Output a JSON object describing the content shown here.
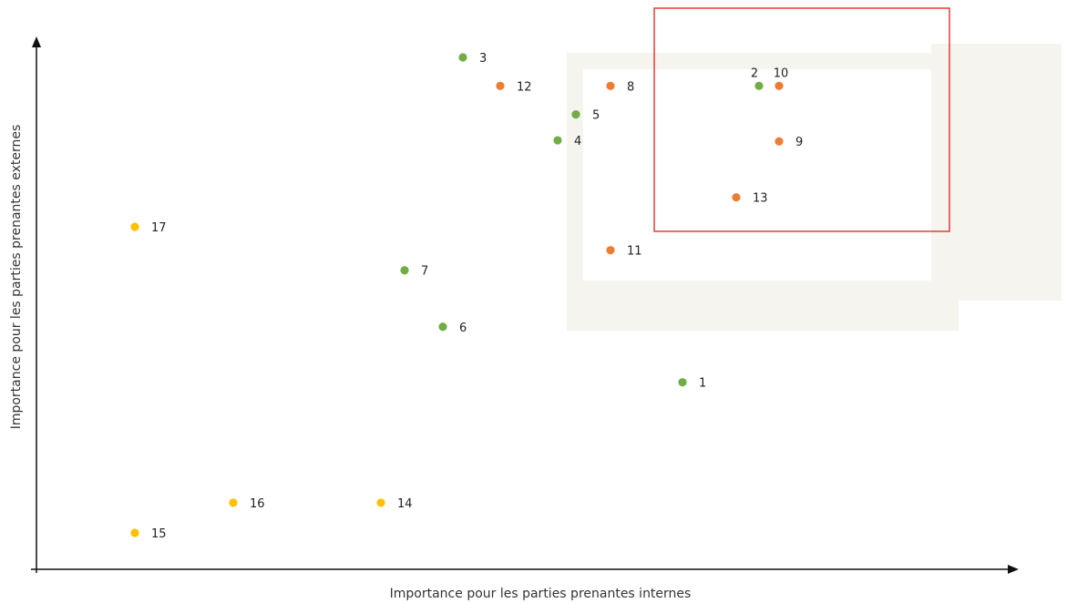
{
  "chart_data": {
    "type": "scatter",
    "xlabel": "Importance pour les parties prenantes internes",
    "ylabel": "Importance pour les parties prenantes externes",
    "xlim": [
      0,
      100
    ],
    "ylim": [
      0,
      100
    ],
    "grid": false,
    "colors": {
      "green": "#70ad47",
      "orange": "#ed7d31",
      "yellow": "#ffc000",
      "highlight": "#e83a3a",
      "axis": "#111111",
      "shade": "#f5f4ef"
    },
    "points": [
      {
        "label": "1",
        "x": 70.9,
        "y": 35.4,
        "color": "green"
      },
      {
        "label": "2",
        "x": 79.3,
        "y": 91.5,
        "color": "green"
      },
      {
        "label": "3",
        "x": 46.8,
        "y": 96.9,
        "color": "green"
      },
      {
        "label": "4",
        "x": 57.2,
        "y": 81.2,
        "color": "green"
      },
      {
        "label": "5",
        "x": 59.2,
        "y": 86.1,
        "color": "green"
      },
      {
        "label": "6",
        "x": 44.6,
        "y": 45.9,
        "color": "green"
      },
      {
        "label": "7",
        "x": 40.4,
        "y": 56.6,
        "color": "green"
      },
      {
        "label": "8",
        "x": 63.0,
        "y": 91.5,
        "color": "orange"
      },
      {
        "label": "9",
        "x": 81.5,
        "y": 81.0,
        "color": "orange"
      },
      {
        "label": "10",
        "x": 81.5,
        "y": 91.5,
        "color": "orange"
      },
      {
        "label": "11",
        "x": 63.0,
        "y": 60.4,
        "color": "orange"
      },
      {
        "label": "12",
        "x": 50.9,
        "y": 91.5,
        "color": "orange"
      },
      {
        "label": "13",
        "x": 76.8,
        "y": 70.4,
        "color": "orange"
      },
      {
        "label": "14",
        "x": 37.8,
        "y": 12.6,
        "color": "yellow"
      },
      {
        "label": "15",
        "x": 10.8,
        "y": 6.9,
        "color": "yellow"
      },
      {
        "label": "16",
        "x": 21.6,
        "y": 12.6,
        "color": "yellow"
      },
      {
        "label": "17",
        "x": 10.8,
        "y": 64.8,
        "color": "yellow"
      }
    ]
  }
}
